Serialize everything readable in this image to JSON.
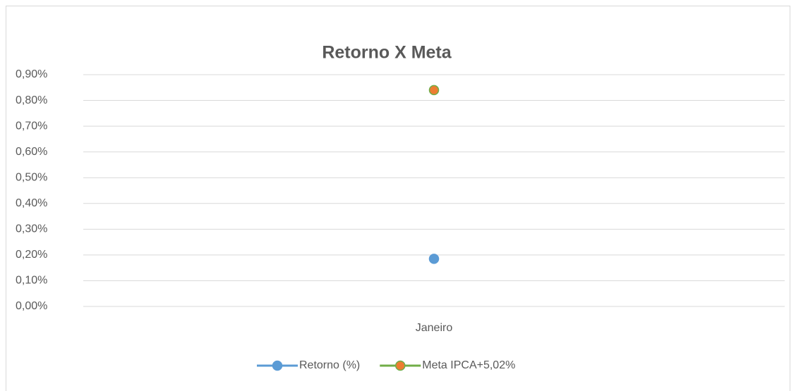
{
  "chart_data": {
    "type": "line",
    "title": "Retorno X Meta",
    "categories": [
      "Janeiro"
    ],
    "series": [
      {
        "name": "Retorno (%)",
        "color": "#5b9bd5",
        "marker_color": "#5b9bd5",
        "values": [
          0.185
        ]
      },
      {
        "name": "Meta IPCA+5,02%",
        "color": "#70ad47",
        "marker_color": "#ed7d31",
        "values": [
          0.84
        ]
      }
    ],
    "ylim": [
      0,
      0.9
    ],
    "yticks": [
      {
        "value": 0,
        "label": "0,00%"
      },
      {
        "value": 0.1,
        "label": "0,10%"
      },
      {
        "value": 0.2,
        "label": "0,20%"
      },
      {
        "value": 0.3,
        "label": "0,30%"
      },
      {
        "value": 0.4,
        "label": "0,40%"
      },
      {
        "value": 0.5,
        "label": "0,50%"
      },
      {
        "value": 0.6,
        "label": "0,60%"
      },
      {
        "value": 0.7,
        "label": "0,70%"
      },
      {
        "value": 0.8,
        "label": "0,80%"
      },
      {
        "value": 0.9,
        "label": "0,90%"
      }
    ],
    "grid": true,
    "legend": "bottom"
  }
}
